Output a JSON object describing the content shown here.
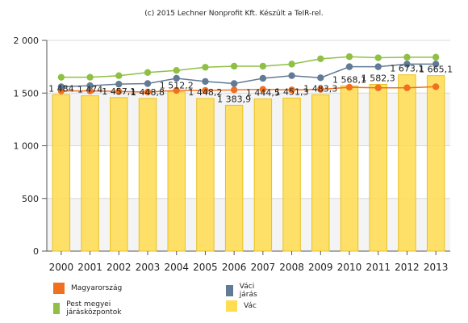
{
  "title": "(c) 2015 Lechner Nonprofit Kft. Készült a TeIR-rel.",
  "colors": {
    "magyarorszag": "#f07020",
    "vaci_jaras": "#627a96",
    "pest": "#8fc045",
    "vac": "#ffdc50",
    "vac_border": "#e8c020"
  },
  "chart_data": {
    "type": "bar",
    "title": "",
    "xlabel": "",
    "ylabel": "",
    "categories": [
      "2000",
      "2001",
      "2002",
      "2003",
      "2004",
      "2005",
      "2006",
      "2007",
      "2008",
      "2009",
      "2010",
      "2011",
      "2012",
      "2013"
    ],
    "ylim": [
      0,
      2000
    ],
    "yticks": [
      0,
      500,
      1000,
      1500,
      2000
    ],
    "ytick_labels": [
      "0",
      "500",
      "1 000",
      "1 500",
      "2 000"
    ],
    "grid": true,
    "legend_position": "bottom",
    "series": [
      {
        "name": "Vác",
        "type": "bar",
        "color_key": "vac",
        "values": [
          1484,
          1474,
          1457.1,
          1448.8,
          1512.2,
          1448.2,
          1383.9,
          1444.5,
          1451.3,
          1483.3,
          1568.1,
          1582.3,
          1673.1,
          1665.1
        ],
        "labels": [
          "1 484",
          "1 474",
          "1 457,1",
          "1 448,8",
          "1 512,2",
          "1 448,2",
          "1 383,9",
          "1 444,5",
          "1 451,3",
          "1 483,3",
          "1 568,1",
          "1 582,3",
          "1 673,1",
          "1 665,1"
        ]
      },
      {
        "name": "Magyarország",
        "type": "line",
        "color_key": "magyarorszag",
        "values": [
          1520,
          1520,
          1515,
          1510,
          1525,
          1525,
          1530,
          1535,
          1530,
          1535,
          1555,
          1550,
          1550,
          1560
        ]
      },
      {
        "name": "Váci járás",
        "type": "line",
        "color_key": "vaci_jaras",
        "values": [
          1560,
          1570,
          1585,
          1590,
          1640,
          1610,
          1590,
          1640,
          1665,
          1645,
          1750,
          1750,
          1775,
          1775
        ]
      },
      {
        "name": "Pest megyei járásközpontok",
        "type": "line",
        "color_key": "pest",
        "values": [
          1650,
          1650,
          1665,
          1695,
          1715,
          1745,
          1755,
          1755,
          1775,
          1825,
          1845,
          1835,
          1840,
          1840
        ]
      }
    ]
  },
  "legend": [
    {
      "label": "Magyarország",
      "color_key": "magyarorszag"
    },
    {
      "label": "Váci járás",
      "color_key": "vaci_jaras"
    },
    {
      "label": "Pest megyei járásközpontok",
      "color_key": "pest"
    },
    {
      "label": "Vác",
      "color_key": "vac"
    }
  ]
}
